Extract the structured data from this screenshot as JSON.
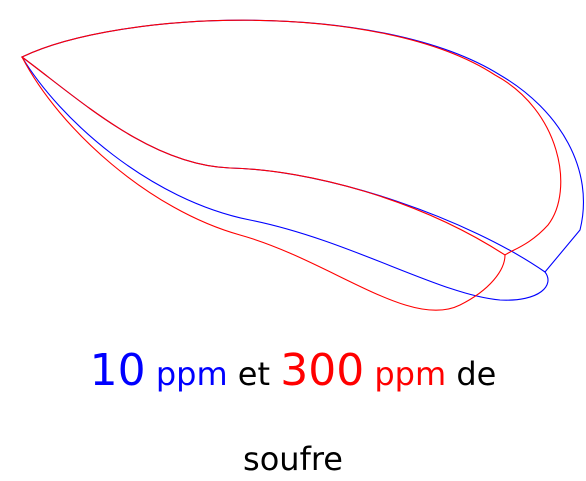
{
  "caption": {
    "line1": {
      "num1": "10",
      "unit1": "ppm",
      "word1": "et",
      "num2": "300",
      "unit2": "ppm",
      "word2": "de"
    },
    "line2": "soufre"
  }
}
